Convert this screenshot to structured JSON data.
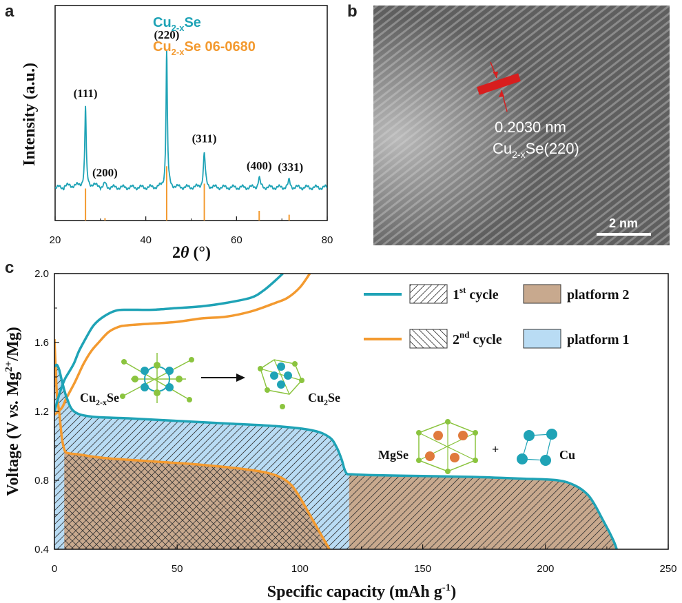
{
  "panels": {
    "a": "a",
    "b": "b",
    "c": "c"
  },
  "chart_data": [
    {
      "type": "line",
      "panel": "a",
      "xlabel_main": "2",
      "xlabel_theta": "θ",
      "xlabel_unit": " (°)",
      "ylabel": "Intensity (a.u.)",
      "xlim": [
        20,
        80
      ],
      "xticks": [
        "20",
        "40",
        "60",
        "80"
      ],
      "legend": {
        "s1_main": "Cu",
        "s1_sub": "2-x",
        "s1_rest": "Se",
        "s2_main": "Cu",
        "s2_sub": "2-x",
        "s2_rest": "Se 06-0680"
      },
      "series_color": "#1fa3b6",
      "reference_color": "#f39a30",
      "peaks": [
        {
          "x": 26.7,
          "h": 0.58,
          "label": "(111)"
        },
        {
          "x": 31.0,
          "h": 0.03,
          "label": "(200)"
        },
        {
          "x": 44.6,
          "h": 1.0,
          "label": "(220)"
        },
        {
          "x": 52.9,
          "h": 0.25,
          "label": "(311)"
        },
        {
          "x": 65.0,
          "h": 0.07,
          "label": "(400)"
        },
        {
          "x": 71.6,
          "h": 0.05,
          "label": "(331)"
        }
      ],
      "reference_lines": [
        {
          "x": 26.7,
          "h": 0.52
        },
        {
          "x": 31.0,
          "h": 0.05
        },
        {
          "x": 44.6,
          "h": 0.98
        },
        {
          "x": 52.9,
          "h": 0.62
        },
        {
          "x": 65.0,
          "h": 0.2
        },
        {
          "x": 71.6,
          "h": 0.12
        }
      ]
    },
    {
      "type": "image",
      "panel": "b",
      "annotation_1": "0.2030 nm",
      "annotation_2_main": "Cu",
      "annotation_2_sub": "2-x",
      "annotation_2_rest": "Se(220)",
      "scale_bar": "2 nm",
      "marker_color": "#d81e1e"
    },
    {
      "type": "line",
      "panel": "c",
      "xlabel": "Specific capacity (mAh g",
      "xlabel_sup": "-1",
      "xlabel_end": ")",
      "ylabel_1": "Voltage (V ",
      "ylabel_vs": "vs.",
      "ylabel_2": " Mg",
      "ylabel_sup": "2+",
      "ylabel_3": "/Mg)",
      "xlim": [
        0,
        250
      ],
      "ylim": [
        0.4,
        2.0
      ],
      "xticks": [
        "0",
        "50",
        "100",
        "150",
        "200",
        "250"
      ],
      "yticks": [
        "0.4",
        "0.8",
        "1.2",
        "1.6",
        "2.0"
      ],
      "legend": {
        "cycle1_pre": "1",
        "cycle1_sup": "st",
        "cycle1_post": " cycle",
        "cycle2_pre": "2",
        "cycle2_sup": "nd",
        "cycle2_post": " cycle",
        "platform2": "platform 2",
        "platform1": "platform 1"
      },
      "colors": {
        "cycle1": "#1fa3b6",
        "cycle2": "#f39a30",
        "platform2": "#c8a98e",
        "platform1": "#b9dcf4"
      },
      "series": [
        {
          "name": "1st cycle discharge",
          "x": [
            0,
            1,
            2,
            3,
            5,
            8,
            15,
            30,
            50,
            70,
            90,
            105,
            112,
            115,
            117,
            118,
            119,
            120,
            121,
            130,
            150,
            170,
            190,
            205,
            212,
            217,
            220,
            223,
            226,
            228,
            229
          ],
          "y": [
            1.46,
            1.47,
            1.44,
            1.38,
            1.28,
            1.2,
            1.17,
            1.16,
            1.145,
            1.13,
            1.115,
            1.09,
            1.05,
            0.99,
            0.92,
            0.87,
            0.84,
            0.835,
            0.835,
            0.83,
            0.825,
            0.82,
            0.81,
            0.8,
            0.77,
            0.72,
            0.66,
            0.58,
            0.5,
            0.44,
            0.4
          ]
        },
        {
          "name": "1st cycle charge",
          "x": [
            0,
            2,
            4,
            6,
            8,
            10,
            13,
            16,
            20,
            25,
            30,
            40,
            50,
            60,
            70,
            80,
            85,
            90,
            93
          ],
          "y": [
            1.2,
            1.3,
            1.38,
            1.43,
            1.48,
            1.55,
            1.63,
            1.7,
            1.75,
            1.785,
            1.79,
            1.79,
            1.8,
            1.81,
            1.83,
            1.86,
            1.9,
            1.96,
            2.0
          ]
        },
        {
          "name": "2nd cycle discharge",
          "x": [
            0,
            0.5,
            1,
            2,
            3,
            4,
            5,
            7,
            10,
            20,
            40,
            60,
            80,
            90,
            96,
            100,
            104,
            108,
            112
          ],
          "y": [
            1.62,
            1.45,
            1.3,
            1.19,
            1.05,
            0.98,
            0.96,
            0.955,
            0.95,
            0.93,
            0.91,
            0.89,
            0.86,
            0.83,
            0.78,
            0.7,
            0.6,
            0.5,
            0.4
          ]
        },
        {
          "name": "2nd cycle charge",
          "x": [
            0,
            3,
            5,
            8,
            10,
            12,
            15,
            18,
            22,
            26,
            30,
            40,
            50,
            60,
            70,
            80,
            90,
            95,
            100,
            104
          ],
          "y": [
            1.18,
            1.22,
            1.28,
            1.36,
            1.42,
            1.48,
            1.55,
            1.6,
            1.66,
            1.69,
            1.7,
            1.71,
            1.72,
            1.74,
            1.75,
            1.78,
            1.83,
            1.86,
            1.92,
            2.0
          ]
        }
      ],
      "labels": {
        "cu2xse_main": "Cu",
        "cu2xse_sub": "2-x",
        "cu2xse_rest": "Se",
        "cu2se_main": "Cu",
        "cu2se_sub": "2",
        "cu2se_rest": "Se",
        "mgse": "MgSe",
        "plus": "+",
        "cu": "Cu"
      }
    }
  ]
}
